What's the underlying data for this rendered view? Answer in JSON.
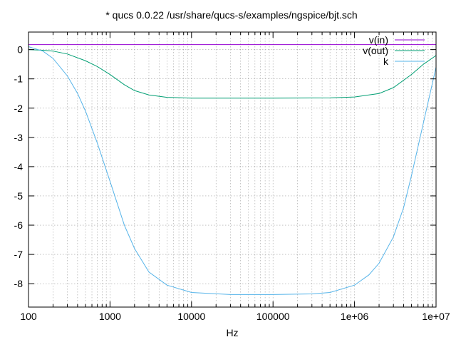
{
  "chart_data": {
    "type": "line",
    "title": "* qucs 0.0.22 /usr/share/qucs-s/examples/ngspice/bjt.sch",
    "xlabel": "Hz",
    "ylabel": "",
    "xscale": "log",
    "xlim": [
      100,
      10000000
    ],
    "ylim": [
      -8.8,
      0.6
    ],
    "grid": true,
    "legend_position": "top-right",
    "x_ticks": [
      {
        "value": 100,
        "label": "100"
      },
      {
        "value": 1000,
        "label": "1000"
      },
      {
        "value": 10000,
        "label": "10000"
      },
      {
        "value": 100000,
        "label": "100000"
      },
      {
        "value": 1000000,
        "label": "1e+06"
      },
      {
        "value": 10000000,
        "label": "1e+07"
      }
    ],
    "y_ticks": [
      {
        "value": 0,
        "label": "0"
      },
      {
        "value": -1,
        "label": "-1"
      },
      {
        "value": -2,
        "label": "-2"
      },
      {
        "value": -3,
        "label": "-3"
      },
      {
        "value": -4,
        "label": "-4"
      },
      {
        "value": -5,
        "label": "-5"
      },
      {
        "value": -6,
        "label": "-6"
      },
      {
        "value": -7,
        "label": "-7"
      },
      {
        "value": -8,
        "label": "-8"
      }
    ],
    "series": [
      {
        "name": "v(in)",
        "color": "#9400d3",
        "x": [
          100,
          10000000
        ],
        "y": [
          0.17,
          0.17
        ]
      },
      {
        "name": "v(out)",
        "color": "#009e73",
        "x": [
          100,
          150,
          200,
          300,
          500,
          700,
          1000,
          1500,
          2000,
          3000,
          5000,
          10000,
          100000,
          500000,
          1000000,
          2000000,
          3000000,
          5000000,
          7000000,
          10000000
        ],
        "y": [
          0.0,
          -0.02,
          -0.05,
          -0.15,
          -0.38,
          -0.58,
          -0.85,
          -1.2,
          -1.4,
          -1.55,
          -1.63,
          -1.66,
          -1.66,
          -1.65,
          -1.62,
          -1.5,
          -1.3,
          -0.85,
          -0.5,
          -0.2
        ]
      },
      {
        "name": "k",
        "color": "#56b4e9",
        "x": [
          100,
          150,
          200,
          300,
          400,
          500,
          700,
          1000,
          1500,
          2000,
          3000,
          5000,
          10000,
          30000,
          100000,
          300000,
          500000,
          1000000,
          1500000,
          2000000,
          3000000,
          4000000,
          5000000,
          7000000,
          10000000
        ],
        "y": [
          0.1,
          -0.05,
          -0.3,
          -0.9,
          -1.5,
          -2.1,
          -3.2,
          -4.5,
          -6.0,
          -6.8,
          -7.6,
          -8.05,
          -8.3,
          -8.37,
          -8.37,
          -8.35,
          -8.3,
          -8.05,
          -7.7,
          -7.3,
          -6.4,
          -5.4,
          -4.3,
          -2.5,
          -0.6
        ]
      }
    ]
  }
}
